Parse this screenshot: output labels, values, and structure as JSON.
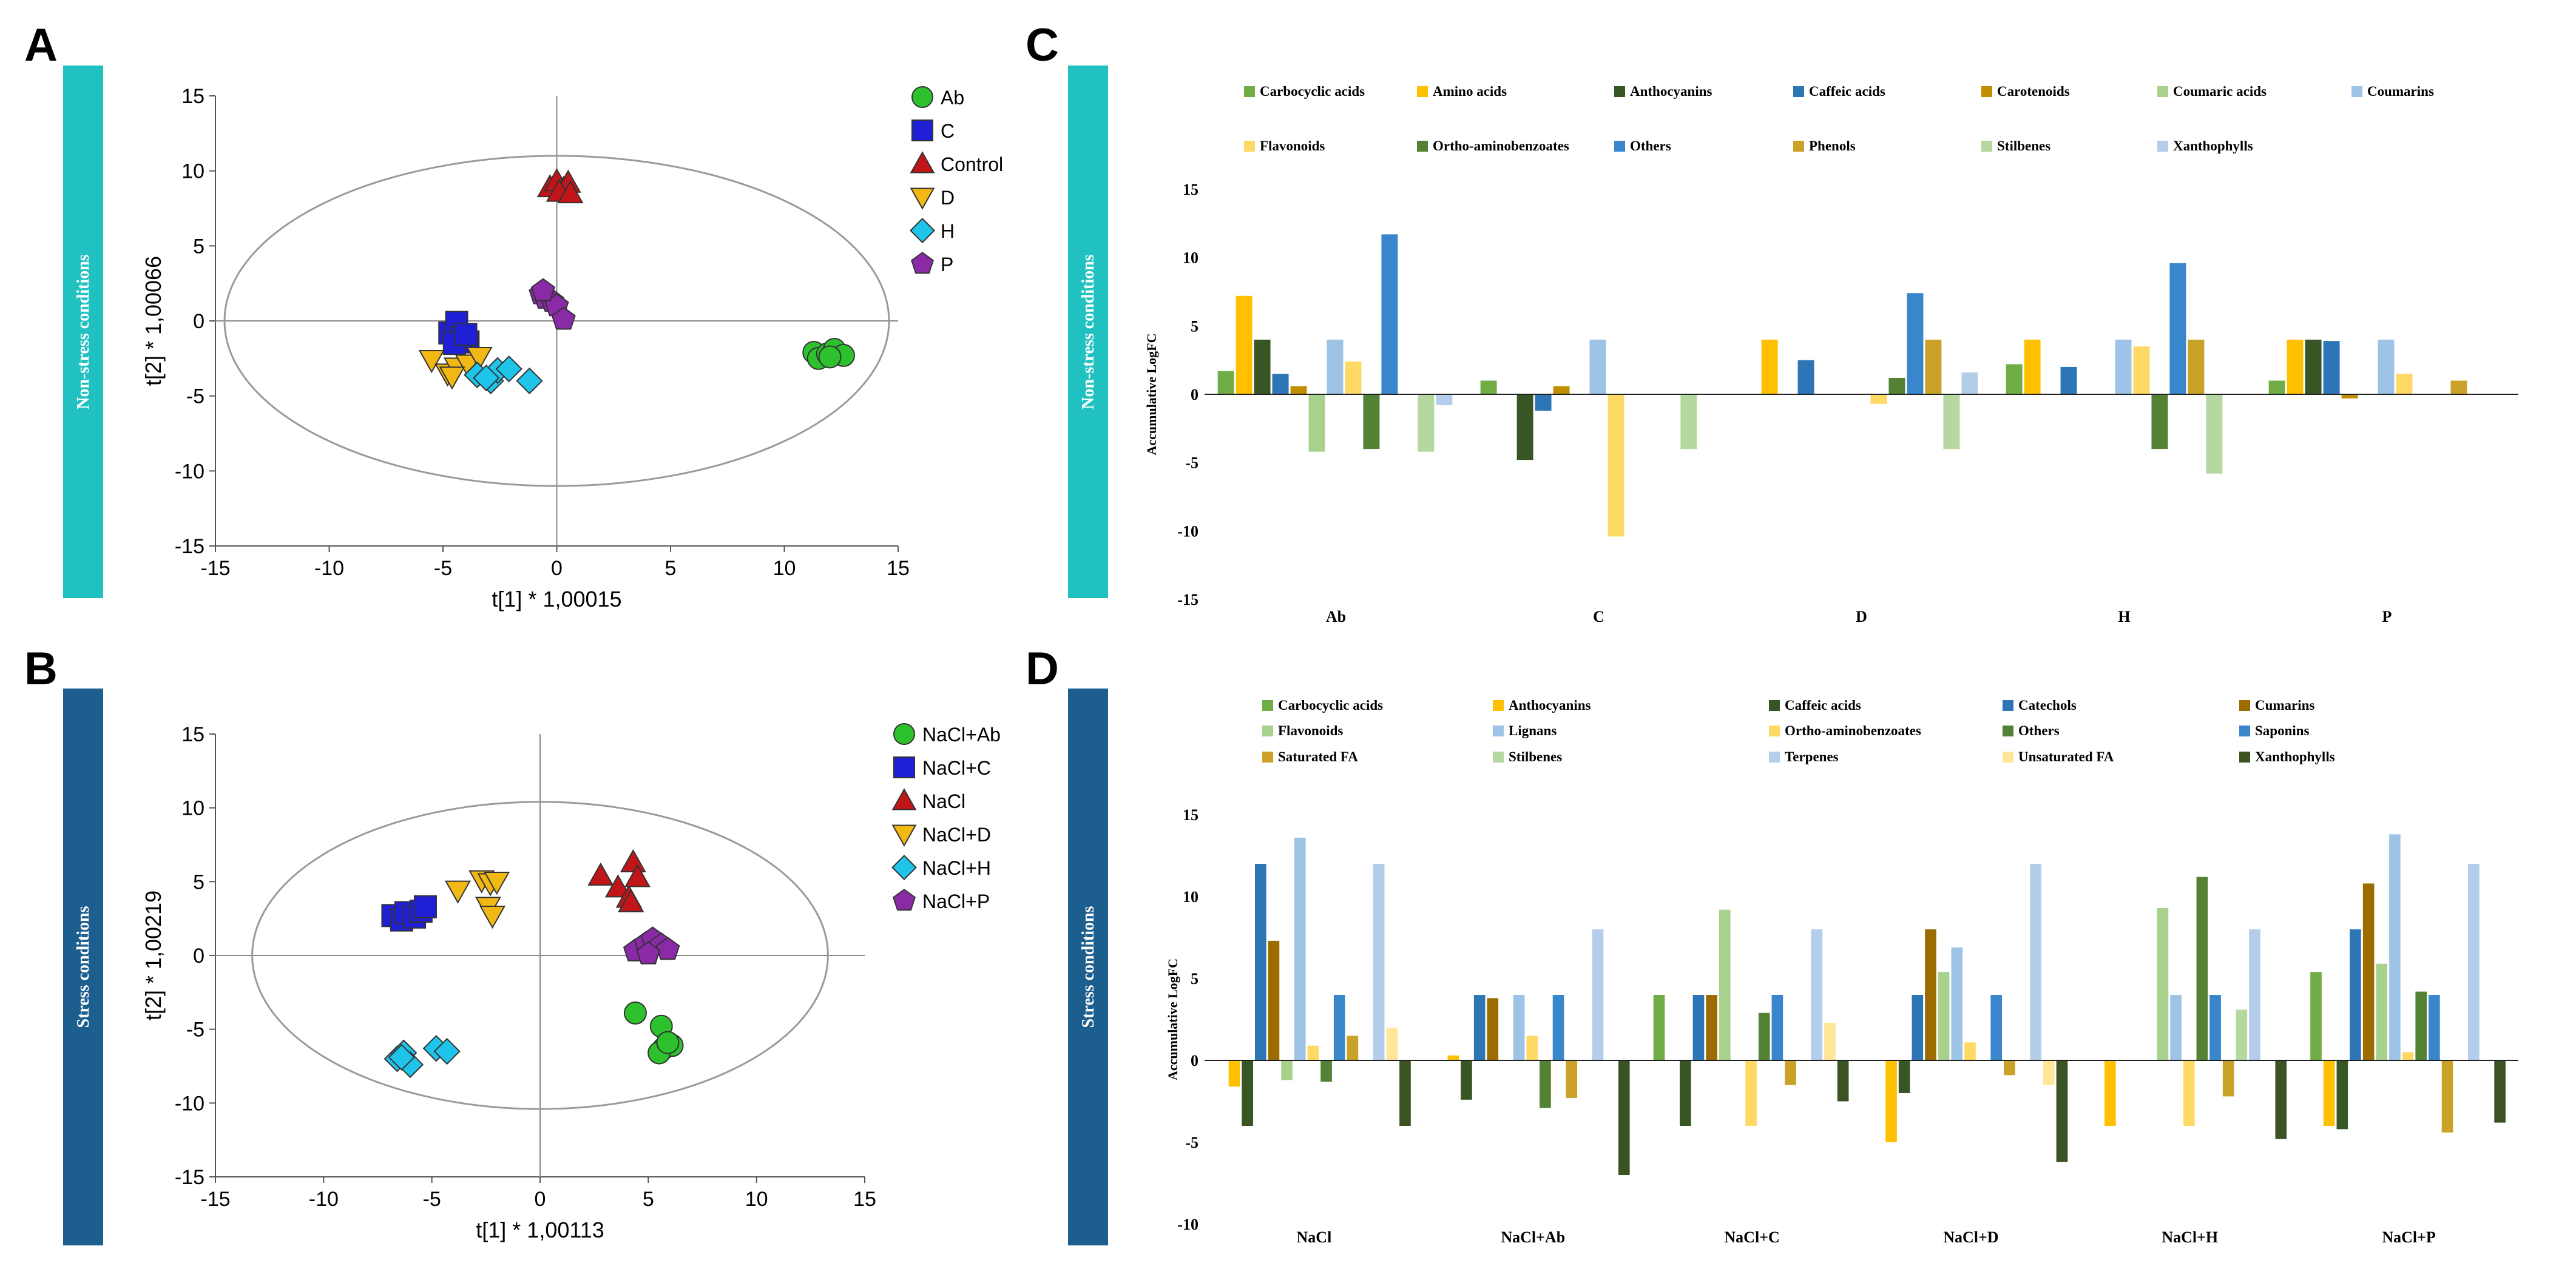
{
  "colors": {
    "Ab": "#2ec12e",
    "C": "#1f1fd6",
    "Control": "#c0161a",
    "D": "#f2b814",
    "H": "#1fc4ea",
    "P": "#8a2aa6",
    "teal": "#21c1c1",
    "navy": "#1c5e8e"
  },
  "panels": {
    "A": {
      "letter": "A",
      "side_label": "Non-stress conditions"
    },
    "B": {
      "letter": "B",
      "side_label": "Stress conditions"
    },
    "C": {
      "letter": "C",
      "side_label": "Non-stress conditions"
    },
    "D": {
      "letter": "D",
      "side_label": "Stress conditions"
    }
  },
  "chart_data": [
    {
      "id": "A",
      "type": "scatter",
      "xlabel": "t[1] * 1,00015",
      "ylabel": "t[2] * 1,00066",
      "xlim": [
        -15,
        15
      ],
      "ylim": [
        -15,
        15
      ],
      "xticks": [
        -15,
        -10,
        -5,
        0,
        5,
        10,
        15
      ],
      "yticks": [
        -15,
        -10,
        -5,
        0,
        5,
        10,
        15
      ],
      "ellipse": {
        "rx": 14.6,
        "ry": 11.0
      },
      "legend_position": "right",
      "series": [
        {
          "name": "Ab",
          "marker": "circle",
          "color": "#2ec12e",
          "points": [
            [
              11.3,
              -2.1
            ],
            [
              11.5,
              -2.5
            ],
            [
              11.9,
              -2.2
            ],
            [
              12.2,
              -1.9
            ],
            [
              12.6,
              -2.3
            ],
            [
              12.0,
              -2.4
            ]
          ]
        },
        {
          "name": "C",
          "marker": "square",
          "color": "#1f1fd6",
          "points": [
            [
              -4.7,
              -0.8
            ],
            [
              -4.4,
              -0.1
            ],
            [
              -4.2,
              -1.1
            ],
            [
              -3.9,
              -1.4
            ],
            [
              -4.5,
              -1.5
            ],
            [
              -4.0,
              -0.9
            ]
          ]
        },
        {
          "name": "Control",
          "marker": "triangle",
          "color": "#c0161a",
          "points": [
            [
              -0.3,
              8.9
            ],
            [
              0.0,
              9.3
            ],
            [
              0.3,
              8.8
            ],
            [
              0.5,
              9.2
            ],
            [
              0.1,
              8.6
            ],
            [
              0.6,
              8.5
            ]
          ]
        },
        {
          "name": "D",
          "marker": "triangle-down",
          "color": "#f2b814",
          "points": [
            [
              -5.5,
              -2.6
            ],
            [
              -4.8,
              -3.5
            ],
            [
              -4.4,
              -3.1
            ],
            [
              -3.9,
              -2.9
            ],
            [
              -3.4,
              -2.4
            ],
            [
              -4.6,
              -3.7
            ]
          ]
        },
        {
          "name": "H",
          "marker": "diamond",
          "color": "#1fc4ea",
          "points": [
            [
              -3.5,
              -3.6
            ],
            [
              -2.9,
              -4.0
            ],
            [
              -2.6,
              -3.3
            ],
            [
              -2.1,
              -3.2
            ],
            [
              -1.2,
              -4.0
            ],
            [
              -3.1,
              -3.8
            ]
          ]
        },
        {
          "name": "P",
          "marker": "pentagon",
          "color": "#8a2aa6",
          "points": [
            [
              -0.7,
              1.8
            ],
            [
              -0.5,
              1.5
            ],
            [
              -0.2,
              1.3
            ],
            [
              0.0,
              1.0
            ],
            [
              0.3,
              0.1
            ],
            [
              -0.6,
              2.0
            ]
          ]
        }
      ]
    },
    {
      "id": "B",
      "type": "scatter",
      "xlabel": "t[1] * 1,00113",
      "ylabel": "t[2] * 1,00219",
      "xlim": [
        -15,
        15
      ],
      "ylim": [
        -15,
        15
      ],
      "xticks": [
        -15,
        -10,
        -5,
        0,
        5,
        10,
        15
      ],
      "yticks": [
        -15,
        -10,
        -5,
        0,
        5,
        10,
        15
      ],
      "ellipse": {
        "rx": 13.3,
        "ry": 10.4
      },
      "legend_position": "right",
      "series": [
        {
          "name": "NaCl+Ab",
          "marker": "circle",
          "color": "#2ec12e",
          "points": [
            [
              4.4,
              -3.9
            ],
            [
              5.6,
              -4.8
            ],
            [
              5.7,
              -6.3
            ],
            [
              6.1,
              -6.1
            ],
            [
              5.5,
              -6.6
            ],
            [
              5.9,
              -5.9
            ]
          ]
        },
        {
          "name": "NaCl+C",
          "marker": "square",
          "color": "#1f1fd6",
          "points": [
            [
              -6.8,
              2.7
            ],
            [
              -6.4,
              2.4
            ],
            [
              -6.2,
              2.9
            ],
            [
              -5.8,
              2.6
            ],
            [
              -5.5,
              3.0
            ],
            [
              -5.3,
              3.3
            ]
          ]
        },
        {
          "name": "NaCl",
          "marker": "triangle",
          "color": "#c0161a",
          "points": [
            [
              2.8,
              5.4
            ],
            [
              3.6,
              4.6
            ],
            [
              4.1,
              3.9
            ],
            [
              4.3,
              6.3
            ],
            [
              4.5,
              5.3
            ],
            [
              4.2,
              3.6
            ]
          ]
        },
        {
          "name": "NaCl+D",
          "marker": "triangle-down",
          "color": "#f2b814",
          "points": [
            [
              -3.8,
              4.4
            ],
            [
              -2.7,
              5.1
            ],
            [
              -2.3,
              4.9
            ],
            [
              -2.4,
              3.3
            ],
            [
              -2.2,
              2.7
            ],
            [
              -2.0,
              5.0
            ]
          ]
        },
        {
          "name": "NaCl+H",
          "marker": "diamond",
          "color": "#1fc4ea",
          "points": [
            [
              -6.6,
              -7.0
            ],
            [
              -6.3,
              -6.6
            ],
            [
              -6.0,
              -7.4
            ],
            [
              -4.8,
              -6.3
            ],
            [
              -4.3,
              -6.5
            ],
            [
              -6.4,
              -6.9
            ]
          ]
        },
        {
          "name": "NaCl+P",
          "marker": "pentagon",
          "color": "#8a2aa6",
          "points": [
            [
              4.4,
              0.3
            ],
            [
              4.9,
              0.8
            ],
            [
              5.2,
              1.1
            ],
            [
              5.6,
              0.7
            ],
            [
              5.9,
              0.4
            ],
            [
              5.0,
              0.1
            ]
          ]
        }
      ]
    },
    {
      "id": "C",
      "type": "bar",
      "ylabel": "Accumulative LogFC",
      "ylim": [
        -15,
        15
      ],
      "yticks": [
        -15,
        -10,
        -5,
        0,
        5,
        10,
        15
      ],
      "categories": [
        "Ab",
        "C",
        "D",
        "H",
        "P"
      ],
      "legend_position": "top",
      "series": [
        {
          "name": "Carbocyclic acids",
          "color": "#70ad47",
          "values": [
            1.7,
            1.0,
            0,
            2.2,
            1.0
          ]
        },
        {
          "name": "Amino acids",
          "color": "#ffc000",
          "values": [
            7.2,
            0,
            4.0,
            4.0,
            4.0
          ]
        },
        {
          "name": "Anthocyanins",
          "color": "#375623",
          "values": [
            4.0,
            -4.8,
            0,
            0,
            4.0
          ]
        },
        {
          "name": "Caffeic acids",
          "color": "#2e75b6",
          "values": [
            1.5,
            -1.2,
            2.5,
            2.0,
            3.9
          ]
        },
        {
          "name": "Carotenoids",
          "color": "#bf8f00",
          "values": [
            0.6,
            0.6,
            0,
            0,
            -0.3
          ]
        },
        {
          "name": "Coumaric acids",
          "color": "#a9d18e",
          "values": [
            -4.2,
            0,
            0,
            0,
            0
          ]
        },
        {
          "name": "Coumarins",
          "color": "#9dc3e6",
          "values": [
            4.0,
            4.0,
            0,
            4.0,
            4.0
          ]
        },
        {
          "name": "Flavonoids",
          "color": "#ffd966",
          "values": [
            2.4,
            -10.4,
            -0.7,
            3.5,
            1.5
          ]
        },
        {
          "name": "Ortho-aminobenzoates",
          "color": "#548235",
          "values": [
            -4.0,
            0,
            1.2,
            -4.0,
            0
          ]
        },
        {
          "name": "Others",
          "color": "#3a86cc",
          "values": [
            11.7,
            0,
            7.4,
            9.6,
            0
          ]
        },
        {
          "name": "Phenols",
          "color": "#c9a227",
          "values": [
            0,
            0,
            4.0,
            4.0,
            1.0
          ]
        },
        {
          "name": "Stilbenes",
          "color": "#b4d8a0",
          "values": [
            -4.2,
            -4.0,
            -4.0,
            -5.8,
            0
          ]
        },
        {
          "name": "Xanthophylls",
          "color": "#b4cdea",
          "values": [
            -0.8,
            0,
            1.6,
            0,
            0
          ]
        }
      ]
    },
    {
      "id": "D",
      "type": "bar",
      "ylabel": "Accumulative LogFC",
      "ylim": [
        -10,
        15
      ],
      "yticks": [
        -10,
        -5,
        0,
        5,
        10,
        15
      ],
      "categories": [
        "NaCl",
        "NaCl+Ab",
        "NaCl+C",
        "NaCl+D",
        "NaCl+H",
        "NaCl+P"
      ],
      "legend_position": "top",
      "series": [
        {
          "name": "Carbocyclic acids",
          "color": "#70ad47",
          "values": [
            0,
            0,
            4.0,
            0,
            0,
            5.4
          ]
        },
        {
          "name": "Anthocyanins",
          "color": "#ffc000",
          "values": [
            -1.6,
            0.3,
            0,
            -5.0,
            -4.0,
            -4.0
          ]
        },
        {
          "name": "Caffeic acids",
          "color": "#375623",
          "values": [
            -4.0,
            -2.4,
            -4.0,
            -2.0,
            0,
            -4.2
          ]
        },
        {
          "name": "Catechols",
          "color": "#2e75b6",
          "values": [
            12.0,
            4.0,
            4.0,
            4.0,
            0,
            8.0
          ]
        },
        {
          "name": "Cumarins",
          "color": "#9c6c00",
          "values": [
            7.3,
            3.8,
            4.0,
            8.0,
            0,
            10.8
          ]
        },
        {
          "name": "Flavonoids",
          "color": "#a9d18e",
          "values": [
            -1.2,
            0,
            9.2,
            5.4,
            9.3,
            5.9
          ]
        },
        {
          "name": "Lignans",
          "color": "#9dc3e6",
          "values": [
            13.6,
            4.0,
            0,
            6.9,
            4.0,
            13.8
          ]
        },
        {
          "name": "Ortho-aminobenzoates",
          "color": "#ffd966",
          "values": [
            0.9,
            1.5,
            -4.0,
            1.1,
            -4.0,
            0.5
          ]
        },
        {
          "name": "Others",
          "color": "#548235",
          "values": [
            -1.3,
            -2.9,
            2.9,
            0,
            11.2,
            4.2
          ]
        },
        {
          "name": "Saponins",
          "color": "#3a86cc",
          "values": [
            4.0,
            4.0,
            4.0,
            4.0,
            4.0,
            4.0
          ]
        },
        {
          "name": "Saturated FA",
          "color": "#c9a227",
          "values": [
            1.5,
            -2.3,
            -1.5,
            -0.9,
            -2.2,
            -4.4
          ]
        },
        {
          "name": "Stilbenes",
          "color": "#b4d8a0",
          "values": [
            0,
            0,
            0,
            0,
            3.1,
            0
          ]
        },
        {
          "name": "Terpenes",
          "color": "#b4cdea",
          "values": [
            12.0,
            8.0,
            8.0,
            12.0,
            8.0,
            12.0
          ]
        },
        {
          "name": "Unsaturated FA",
          "color": "#ffe699",
          "values": [
            2.0,
            0,
            2.3,
            -1.5,
            0,
            0
          ]
        },
        {
          "name": "Xanthophylls",
          "color": "#3b5323",
          "values": [
            -4.0,
            -7.0,
            -2.5,
            -6.2,
            -4.8,
            -3.8
          ]
        }
      ]
    }
  ]
}
